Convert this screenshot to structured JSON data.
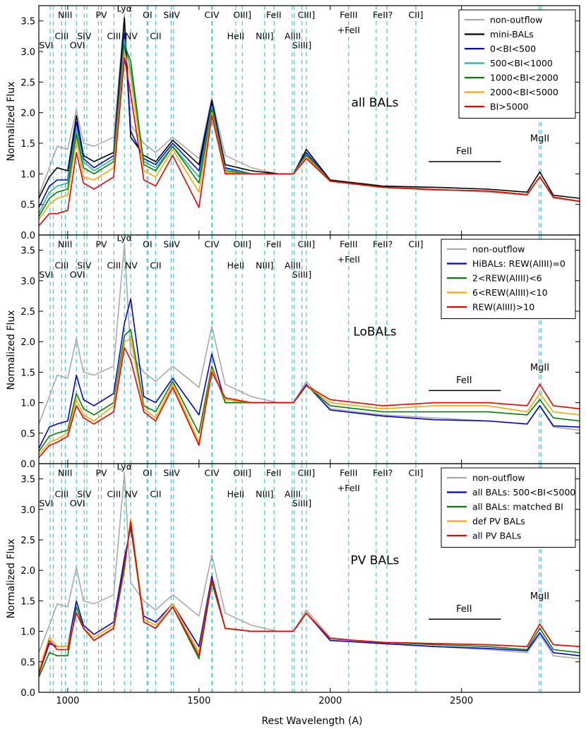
{
  "figure": {
    "xlabel": "Rest Wavelength (A)",
    "ylabel": "Normalized Flux"
  },
  "colors": {
    "non_outflow": "#a9a9a9",
    "black": "#000000",
    "blue": "#0000dd",
    "cyan": "#20b2aa",
    "green": "#008000",
    "orange": "#ffa500",
    "red": "#ee0000",
    "lines": "#40c8d0"
  },
  "chart_data": [
    {
      "type": "line",
      "title": "all BALs",
      "xlabel": "Rest Wavelength (A)",
      "ylabel": "Normalized Flux",
      "xlim": [
        890,
        2950
      ],
      "ylim": [
        0.0,
        3.75
      ],
      "xticks": [
        1000,
        1500,
        2000,
        2500
      ],
      "yticks": [
        0.0,
        0.5,
        1.0,
        1.5,
        2.0,
        2.5,
        3.0,
        3.5
      ],
      "legend": [
        "non-outflow",
        "mini-BALs",
        "0<BI<500",
        "500<BI<1000",
        "1000<BI<2000",
        "2000<BI<5000",
        "BI>5000"
      ],
      "legend_position": "top-right",
      "x": [
        890,
        930,
        960,
        1000,
        1033,
        1060,
        1100,
        1175,
        1216,
        1240,
        1290,
        1335,
        1400,
        1500,
        1549,
        1600,
        1700,
        1800,
        1860,
        1909,
        2000,
        2200,
        2400,
        2600,
        2750,
        2798,
        2850,
        2950
      ],
      "series": [
        {
          "name": "non-outflow",
          "color_key": "non_outflow",
          "values": [
            0.65,
            1.1,
            1.45,
            1.4,
            2.05,
            1.5,
            1.45,
            1.6,
            3.6,
            1.8,
            1.5,
            1.35,
            1.6,
            1.25,
            2.25,
            1.3,
            1.1,
            1.0,
            1.0,
            1.35,
            0.9,
            0.8,
            0.75,
            0.7,
            0.65,
            0.95,
            0.6,
            0.55
          ]
        },
        {
          "name": "mini-BALs",
          "color_key": "black",
          "values": [
            0.6,
            0.95,
            1.1,
            1.05,
            1.95,
            1.3,
            1.2,
            1.35,
            3.55,
            1.6,
            1.3,
            1.2,
            1.55,
            1.15,
            2.2,
            1.15,
            1.05,
            1.0,
            1.0,
            1.4,
            0.9,
            0.8,
            0.78,
            0.75,
            0.7,
            1.03,
            0.65,
            0.6
          ]
        },
        {
          "name": "0<BI<500",
          "color_key": "blue",
          "values": [
            0.45,
            0.8,
            0.9,
            0.9,
            1.85,
            1.25,
            1.1,
            1.3,
            3.3,
            1.7,
            1.25,
            1.15,
            1.5,
            1.05,
            2.15,
            1.1,
            1.0,
            1.0,
            1.0,
            1.35,
            0.88,
            0.78,
            0.74,
            0.72,
            0.66,
            0.95,
            0.62,
            0.55
          ]
        },
        {
          "name": "500<BI<1000",
          "color_key": "cyan",
          "values": [
            0.35,
            0.7,
            0.8,
            0.85,
            1.75,
            1.2,
            1.05,
            1.25,
            3.2,
            2.7,
            1.2,
            1.1,
            1.45,
            0.95,
            2.1,
            1.08,
            1.0,
            1.0,
            1.0,
            1.32,
            0.88,
            0.78,
            0.74,
            0.72,
            0.66,
            0.95,
            0.62,
            0.55
          ]
        },
        {
          "name": "1000<BI<2000",
          "color_key": "green",
          "values": [
            0.3,
            0.6,
            0.7,
            0.75,
            1.65,
            1.1,
            1.0,
            1.2,
            3.1,
            2.85,
            1.15,
            1.05,
            1.45,
            0.85,
            2.05,
            1.05,
            1.0,
            1.0,
            1.0,
            1.3,
            0.88,
            0.78,
            0.74,
            0.72,
            0.66,
            0.95,
            0.62,
            0.55
          ]
        },
        {
          "name": "2000<BI<5000",
          "color_key": "orange",
          "values": [
            0.25,
            0.5,
            0.6,
            0.65,
            1.55,
            0.95,
            0.9,
            1.1,
            3.0,
            2.6,
            1.05,
            0.95,
            1.4,
            0.7,
            2.0,
            1.02,
            1.0,
            1.0,
            1.0,
            1.28,
            0.88,
            0.78,
            0.74,
            0.72,
            0.66,
            0.95,
            0.62,
            0.55
          ]
        },
        {
          "name": "BI>5000",
          "color_key": "red",
          "values": [
            0.15,
            0.35,
            0.35,
            0.4,
            1.35,
            0.85,
            0.75,
            0.95,
            2.9,
            2.3,
            0.9,
            0.8,
            1.3,
            0.45,
            1.95,
            1.0,
            1.0,
            1.0,
            1.0,
            1.25,
            0.88,
            0.78,
            0.74,
            0.72,
            0.66,
            0.95,
            0.62,
            0.55
          ]
        }
      ],
      "annotations": [
        {
          "text": "FeII",
          "x": 2510,
          "y": 1.32,
          "bar": [
            2375,
            2650
          ]
        },
        {
          "text": "MgII",
          "x": 2798,
          "y": 1.53
        }
      ]
    },
    {
      "type": "line",
      "title": "LoBALs",
      "xlabel": "Rest Wavelength (A)",
      "ylabel": "Normalized Flux",
      "xlim": [
        890,
        2950
      ],
      "ylim": [
        0.0,
        3.75
      ],
      "xticks": [
        1000,
        1500,
        2000,
        2500
      ],
      "yticks": [
        0.0,
        0.5,
        1.0,
        1.5,
        2.0,
        2.5,
        3.0,
        3.5
      ],
      "legend": [
        "non-outflow",
        "HiBALs: REW(AlIII)=0",
        "2<REW(AlIII)<6",
        "6<REW(AlIII)<10",
        "REW(AlIII)>10"
      ],
      "legend_position": "top-right",
      "x": [
        890,
        930,
        960,
        1000,
        1033,
        1060,
        1100,
        1175,
        1216,
        1240,
        1290,
        1335,
        1400,
        1500,
        1549,
        1600,
        1700,
        1800,
        1860,
        1909,
        2000,
        2200,
        2400,
        2600,
        2750,
        2798,
        2850,
        2950
      ],
      "series": [
        {
          "name": "non-outflow",
          "color_key": "non_outflow",
          "values": [
            0.65,
            1.1,
            1.45,
            1.4,
            2.05,
            1.5,
            1.45,
            1.6,
            3.6,
            1.8,
            1.5,
            1.35,
            1.6,
            1.25,
            2.25,
            1.3,
            1.1,
            1.0,
            1.0,
            1.35,
            0.9,
            0.8,
            0.75,
            0.7,
            0.65,
            0.95,
            0.6,
            0.55
          ]
        },
        {
          "name": "HiBALs: REW(AlIII)=0",
          "color_key": "blue",
          "values": [
            0.25,
            0.6,
            0.65,
            0.7,
            1.45,
            1.05,
            0.95,
            1.15,
            2.3,
            2.7,
            1.1,
            1.0,
            1.4,
            0.8,
            1.8,
            1.0,
            1.0,
            1.0,
            1.0,
            1.3,
            0.88,
            0.78,
            0.72,
            0.7,
            0.65,
            0.95,
            0.62,
            0.6
          ]
        },
        {
          "name": "2<REW(AlIII)<6",
          "color_key": "green",
          "values": [
            0.2,
            0.45,
            0.5,
            0.55,
            1.15,
            0.9,
            0.8,
            1.0,
            2.1,
            2.2,
            0.95,
            0.85,
            1.35,
            0.5,
            1.6,
            1.0,
            1.0,
            1.0,
            1.0,
            1.28,
            0.95,
            0.85,
            0.85,
            0.85,
            0.8,
            1.05,
            0.75,
            0.7
          ]
        },
        {
          "name": "6<REW(AlIII)<10",
          "color_key": "orange",
          "values": [
            0.15,
            0.35,
            0.4,
            0.5,
            1.05,
            0.8,
            0.7,
            0.95,
            2.0,
            2.05,
            0.9,
            0.75,
            1.3,
            0.35,
            1.55,
            1.05,
            1.0,
            1.0,
            1.0,
            1.28,
            1.0,
            0.9,
            0.95,
            0.95,
            0.85,
            1.15,
            0.85,
            0.8
          ]
        },
        {
          "name": "REW(AlIII)>10",
          "color_key": "red",
          "values": [
            0.1,
            0.3,
            0.35,
            0.45,
            0.95,
            0.75,
            0.65,
            0.85,
            1.9,
            1.7,
            0.85,
            0.7,
            1.25,
            0.3,
            1.5,
            1.08,
            1.0,
            1.0,
            1.0,
            1.28,
            1.05,
            0.95,
            1.0,
            1.0,
            0.95,
            1.3,
            0.95,
            0.9
          ]
        }
      ],
      "annotations": [
        {
          "text": "FeII",
          "x": 2510,
          "y": 1.32,
          "bar": [
            2375,
            2650
          ]
        },
        {
          "text": "MgII",
          "x": 2798,
          "y": 1.53
        }
      ]
    },
    {
      "type": "line",
      "title": "PV BALs",
      "xlabel": "Rest Wavelength (A)",
      "ylabel": "Normalized Flux",
      "xlim": [
        890,
        2950
      ],
      "ylim": [
        0.0,
        3.75
      ],
      "xticks": [
        1000,
        1500,
        2000,
        2500
      ],
      "yticks": [
        0.0,
        0.5,
        1.0,
        1.5,
        2.0,
        2.5,
        3.0,
        3.5
      ],
      "legend": [
        "non-outflow",
        "all BALs: 500<BI<5000",
        "all BALs: matched BI",
        "def PV BALs",
        "all PV BALs"
      ],
      "legend_position": "top-right",
      "x": [
        890,
        930,
        960,
        1000,
        1033,
        1060,
        1100,
        1175,
        1216,
        1240,
        1290,
        1335,
        1400,
        1500,
        1549,
        1600,
        1700,
        1800,
        1860,
        1909,
        2000,
        2200,
        2400,
        2600,
        2750,
        2798,
        2850,
        2950
      ],
      "series": [
        {
          "name": "non-outflow",
          "color_key": "non_outflow",
          "values": [
            0.65,
            1.1,
            1.45,
            1.4,
            2.05,
            1.5,
            1.45,
            1.6,
            3.6,
            1.8,
            1.5,
            1.35,
            1.6,
            1.25,
            2.25,
            1.3,
            1.1,
            1.0,
            1.0,
            1.35,
            0.9,
            0.8,
            0.75,
            0.7,
            0.65,
            0.95,
            0.6,
            0.55
          ]
        },
        {
          "name": "all BALs: 500<BI<5000",
          "color_key": "blue",
          "values": [
            0.3,
            0.8,
            0.75,
            0.75,
            1.5,
            1.1,
            0.95,
            1.15,
            2.2,
            2.7,
            1.25,
            1.15,
            1.45,
            0.75,
            1.9,
            1.05,
            1.0,
            1.0,
            1.0,
            1.3,
            0.85,
            0.8,
            0.75,
            0.72,
            0.68,
            0.98,
            0.65,
            0.6
          ]
        },
        {
          "name": "all BALs: matched BI",
          "color_key": "green",
          "values": [
            0.25,
            0.65,
            0.6,
            0.6,
            1.4,
            1.05,
            0.85,
            1.05,
            2.1,
            2.75,
            1.15,
            1.05,
            1.4,
            0.55,
            1.8,
            1.05,
            1.0,
            1.0,
            1.0,
            1.3,
            0.88,
            0.82,
            0.78,
            0.75,
            0.7,
            1.05,
            0.7,
            0.65
          ]
        },
        {
          "name": "def PV BALs",
          "color_key": "orange",
          "values": [
            0.35,
            0.9,
            0.75,
            0.75,
            1.3,
            1.05,
            0.9,
            1.1,
            2.0,
            2.85,
            1.2,
            1.1,
            1.45,
            0.65,
            1.85,
            1.05,
            1.0,
            1.0,
            1.0,
            1.3,
            0.88,
            0.82,
            0.8,
            0.78,
            0.75,
            1.12,
            0.78,
            0.75
          ]
        },
        {
          "name": "all PV BALs",
          "color_key": "red",
          "values": [
            0.3,
            0.85,
            0.7,
            0.7,
            1.3,
            1.05,
            0.85,
            1.05,
            2.05,
            2.8,
            1.15,
            1.05,
            1.4,
            0.6,
            1.85,
            1.05,
            1.0,
            1.0,
            1.0,
            1.3,
            0.88,
            0.82,
            0.8,
            0.78,
            0.75,
            1.12,
            0.78,
            0.75
          ]
        }
      ],
      "annotations": [
        {
          "text": "FeII",
          "x": 2510,
          "y": 1.32,
          "bar": [
            2375,
            2650
          ]
        },
        {
          "text": "MgII",
          "x": 2798,
          "y": 1.53
        }
      ]
    }
  ],
  "line_ids": [
    {
      "text": "SVI",
      "x": 918,
      "y": 3.05
    },
    {
      "text": "NIII",
      "x": 990,
      "y": 3.55
    },
    {
      "text": "CIII",
      "x": 977,
      "y": 3.2
    },
    {
      "text": "OVI",
      "x": 1037,
      "y": 3.05
    },
    {
      "text": "SIV",
      "x": 1063,
      "y": 3.2
    },
    {
      "text": "PV",
      "x": 1128,
      "y": 3.55
    },
    {
      "text": "CIII",
      "x": 1176,
      "y": 3.2
    },
    {
      "text": "Lyα",
      "x": 1216,
      "y": 3.65
    },
    {
      "text": "NV",
      "x": 1242,
      "y": 3.2
    },
    {
      "text": "OI",
      "x": 1304,
      "y": 3.55
    },
    {
      "text": "CII",
      "x": 1335,
      "y": 3.2
    },
    {
      "text": "SiIV",
      "x": 1396,
      "y": 3.55
    },
    {
      "text": "CIV",
      "x": 1549,
      "y": 3.55
    },
    {
      "text": "HeII",
      "x": 1640,
      "y": 3.2
    },
    {
      "text": "OIII]",
      "x": 1665,
      "y": 3.55
    },
    {
      "text": "NIII]",
      "x": 1750,
      "y": 3.2
    },
    {
      "text": "FeII",
      "x": 1785,
      "y": 3.55
    },
    {
      "text": "AlIII",
      "x": 1857,
      "y": 3.2
    },
    {
      "text": "SiIII]",
      "x": 1892,
      "y": 3.05
    },
    {
      "text": "CIII]",
      "x": 1909,
      "y": 3.55
    },
    {
      "text": "FeIII",
      "x": 2070,
      "y": 3.55
    },
    {
      "text": "+FeII",
      "x": 2070,
      "y": 3.3
    },
    {
      "text": "FeII?",
      "x": 2200,
      "y": 3.55
    },
    {
      "text": "CII]",
      "x": 2326,
      "y": 3.55
    }
  ],
  "line_marks": [
    933,
    945,
    977,
    991,
    1033,
    1063,
    1073,
    1117,
    1128,
    1176,
    1216,
    1240,
    1302,
    1306,
    1335,
    1394,
    1403,
    1549,
    1551,
    1640,
    1665,
    1750,
    1786,
    1855,
    1863,
    1892,
    1909,
    2070,
    2175,
    2216,
    2326,
    2796,
    2803
  ]
}
